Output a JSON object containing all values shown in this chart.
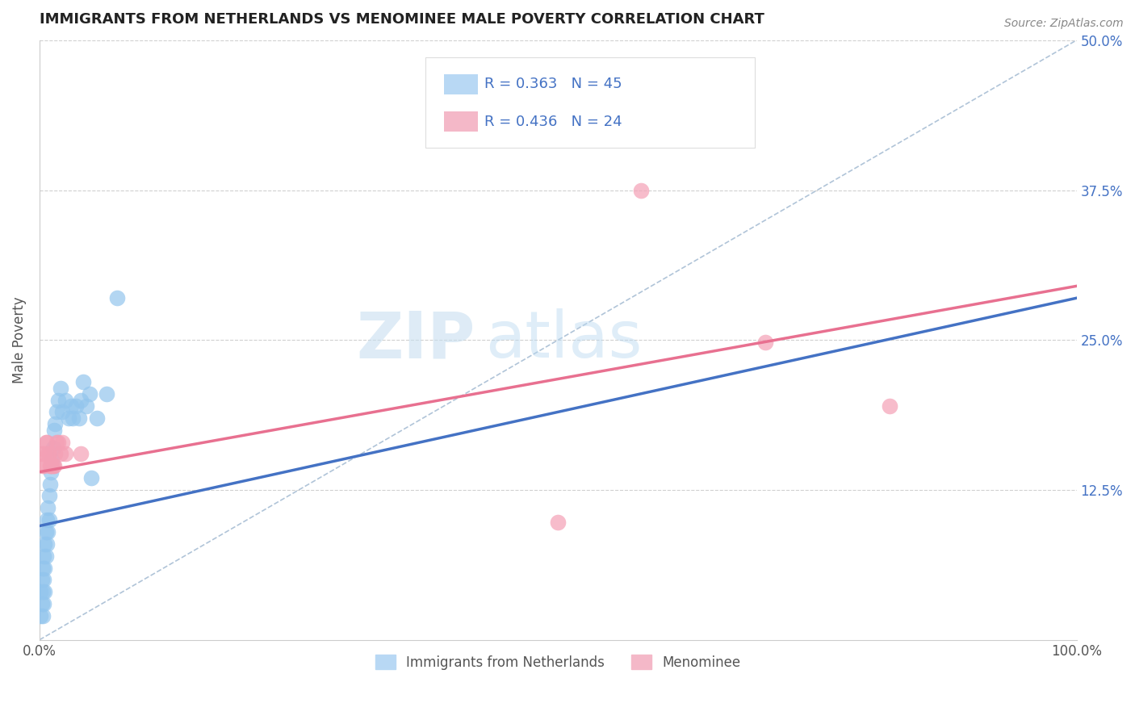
{
  "title": "IMMIGRANTS FROM NETHERLANDS VS MENOMINEE MALE POVERTY CORRELATION CHART",
  "source": "Source: ZipAtlas.com",
  "ylabel": "Male Poverty",
  "xlim": [
    0,
    1.0
  ],
  "ylim": [
    0,
    0.5
  ],
  "xtick_labels": [
    "0.0%",
    "100.0%"
  ],
  "ytick_labels": [
    "12.5%",
    "25.0%",
    "37.5%",
    "50.0%"
  ],
  "ytick_positions": [
    0.125,
    0.25,
    0.375,
    0.5
  ],
  "legend_labels": [
    "Immigrants from Netherlands",
    "Menominee"
  ],
  "series_blue": {
    "label": "Immigrants from Netherlands",
    "color": "#93c5ed",
    "R": 0.363,
    "N": 45,
    "scatter_x": [
      0.001,
      0.001,
      0.002,
      0.002,
      0.003,
      0.003,
      0.003,
      0.004,
      0.004,
      0.004,
      0.005,
      0.005,
      0.005,
      0.006,
      0.006,
      0.007,
      0.007,
      0.008,
      0.008,
      0.009,
      0.009,
      0.01,
      0.011,
      0.012,
      0.013,
      0.014,
      0.015,
      0.016,
      0.018,
      0.02,
      0.022,
      0.025,
      0.028,
      0.03,
      0.032,
      0.035,
      0.038,
      0.04,
      0.042,
      0.045,
      0.048,
      0.05,
      0.055,
      0.065,
      0.075
    ],
    "scatter_y": [
      0.04,
      0.02,
      0.05,
      0.03,
      0.06,
      0.04,
      0.02,
      0.07,
      0.05,
      0.03,
      0.08,
      0.06,
      0.04,
      0.09,
      0.07,
      0.1,
      0.08,
      0.11,
      0.09,
      0.12,
      0.1,
      0.13,
      0.14,
      0.15,
      0.16,
      0.175,
      0.18,
      0.19,
      0.2,
      0.21,
      0.19,
      0.2,
      0.185,
      0.195,
      0.185,
      0.195,
      0.185,
      0.2,
      0.215,
      0.195,
      0.205,
      0.135,
      0.185,
      0.205,
      0.285
    ],
    "trend_x_start": 0.0,
    "trend_x_end": 1.0,
    "trend_y_start": 0.095,
    "trend_y_end": 0.285,
    "trend_color": "#4472c4"
  },
  "series_pink": {
    "label": "Menominee",
    "color": "#f4a0b5",
    "R": 0.436,
    "N": 24,
    "scatter_x": [
      0.002,
      0.003,
      0.004,
      0.005,
      0.006,
      0.007,
      0.008,
      0.009,
      0.01,
      0.011,
      0.012,
      0.013,
      0.014,
      0.015,
      0.016,
      0.018,
      0.02,
      0.022,
      0.025,
      0.04,
      0.5,
      0.58,
      0.7,
      0.82
    ],
    "scatter_y": [
      0.155,
      0.145,
      0.145,
      0.155,
      0.165,
      0.165,
      0.155,
      0.155,
      0.145,
      0.145,
      0.145,
      0.145,
      0.145,
      0.155,
      0.165,
      0.165,
      0.155,
      0.165,
      0.155,
      0.155,
      0.098,
      0.375,
      0.248,
      0.195
    ],
    "trend_x_start": 0.0,
    "trend_x_end": 1.0,
    "trend_y_start": 0.14,
    "trend_y_end": 0.295,
    "trend_color": "#e87090"
  },
  "ref_line": {
    "x_start": 0.0,
    "x_end": 1.0,
    "y_start": 0.0,
    "y_end": 0.5,
    "color": "#b0c4d8",
    "linestyle": "--",
    "linewidth": 1.2
  },
  "watermark_zip": "ZIP",
  "watermark_atlas": "atlas",
  "background_color": "#ffffff",
  "grid_color": "#d0d0d0",
  "title_color": "#222222",
  "axis_label_color": "#555555",
  "tick_label_color_right": "#4472c4",
  "source_color": "#888888"
}
